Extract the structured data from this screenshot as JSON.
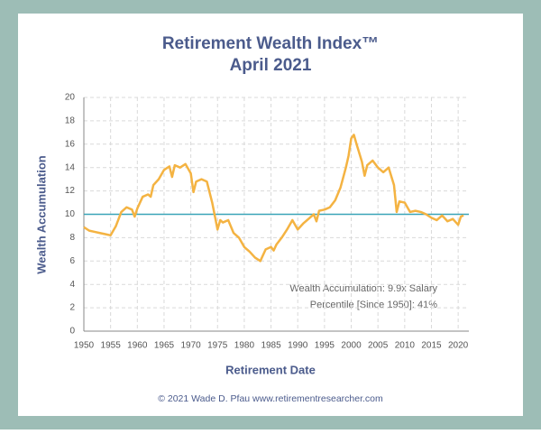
{
  "chart_data": {
    "type": "line",
    "title": "Retirement Wealth Index™",
    "subtitle": "April 2021",
    "x_label": "Retirement Date",
    "y_label": "Wealth Accumulation",
    "footer": "© 2021 Wade D. Pfau www.retirementresearcher.com",
    "annotations": [
      "Wealth Accumulation: 9.9x Salary",
      "Percentile [Since 1950]: 41%"
    ],
    "x": [
      1950,
      1951,
      1952,
      1953,
      1954,
      1955,
      1956,
      1957,
      1958,
      1959,
      1959.5,
      1960,
      1961,
      1962,
      1962.5,
      1963,
      1964,
      1965,
      1966,
      1966.5,
      1967,
      1968,
      1969,
      1970,
      1970.5,
      1971,
      1972,
      1973,
      1974,
      1975,
      1975.5,
      1976,
      1977,
      1978,
      1979,
      1980,
      1981,
      1982,
      1983,
      1984,
      1985,
      1985.5,
      1986,
      1987,
      1988,
      1989,
      1990,
      1991,
      1992,
      1993,
      1993.5,
      1994,
      1995,
      1996,
      1997,
      1998,
      1999,
      1999.5,
      2000,
      2000.5,
      2001,
      2002,
      2002.5,
      2003,
      2004,
      2005,
      2006,
      2007,
      2008,
      2008.5,
      2009,
      2010,
      2011,
      2012,
      2013,
      2014,
      2015,
      2016,
      2017,
      2018,
      2019,
      2020,
      2020.5,
      2021
    ],
    "series": [
      {
        "name": "Wealth Accumulation",
        "color": "#f4b342",
        "values": [
          8.9,
          8.6,
          8.5,
          8.4,
          8.3,
          8.2,
          9.0,
          10.2,
          10.6,
          10.4,
          9.8,
          10.5,
          11.5,
          11.7,
          11.5,
          12.5,
          13.0,
          13.8,
          14.1,
          13.2,
          14.2,
          14.0,
          14.3,
          13.5,
          11.9,
          12.8,
          13.0,
          12.8,
          11.0,
          8.7,
          9.5,
          9.3,
          9.5,
          8.4,
          8.0,
          7.2,
          6.8,
          6.3,
          6.0,
          7.0,
          7.2,
          6.9,
          7.4,
          8.0,
          8.7,
          9.5,
          8.7,
          9.2,
          9.6,
          10.0,
          9.4,
          10.3,
          10.4,
          10.6,
          11.2,
          12.3,
          14.0,
          15.0,
          16.5,
          16.8,
          16.0,
          14.5,
          13.3,
          14.2,
          14.6,
          14.0,
          13.6,
          14.0,
          12.5,
          10.2,
          11.1,
          11.0,
          10.2,
          10.3,
          10.2,
          10.0,
          9.7,
          9.5,
          9.9,
          9.4,
          9.6,
          9.1,
          9.8,
          9.9
        ]
      }
    ],
    "reference_line": {
      "value": 10,
      "color": "#3aa5b8"
    },
    "xlim": [
      1950,
      2022
    ],
    "xticks": [
      1950,
      1955,
      1960,
      1965,
      1970,
      1975,
      1980,
      1985,
      1990,
      1995,
      2000,
      2005,
      2010,
      2015,
      2020
    ],
    "ylim": [
      0,
      20
    ],
    "yticks": [
      0,
      2,
      4,
      6,
      8,
      10,
      12,
      14,
      16,
      18,
      20
    ],
    "grid": true
  }
}
